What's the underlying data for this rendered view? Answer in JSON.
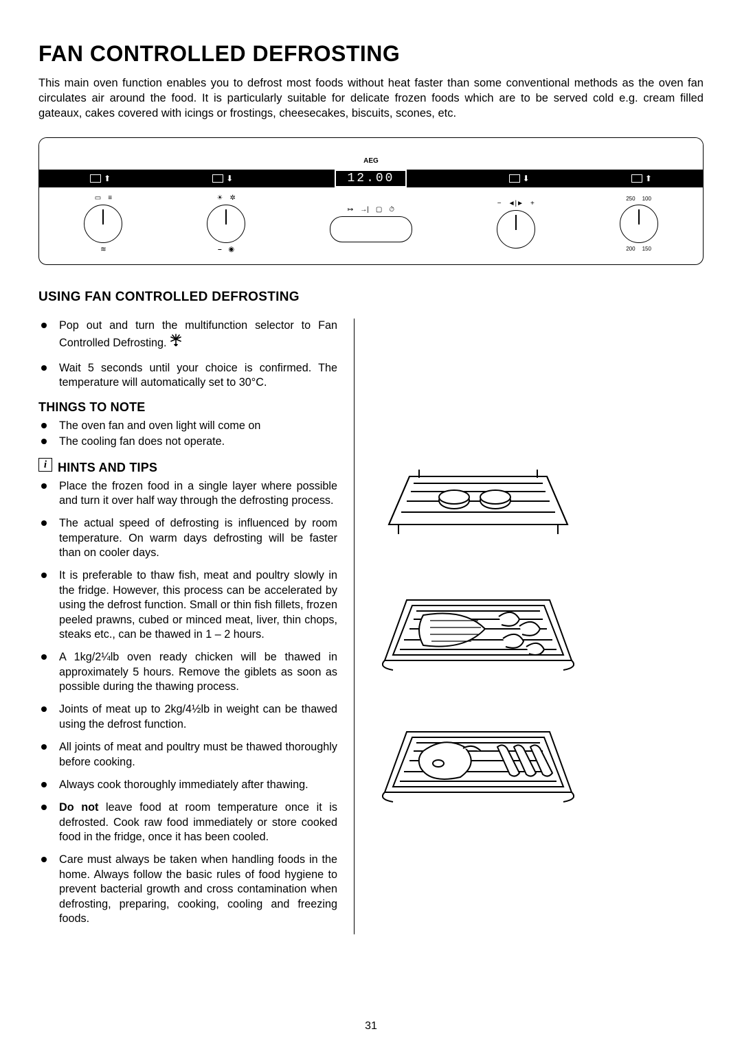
{
  "title": "FAN CONTROLLED DEFROSTING",
  "intro": "This main oven function enables you to defrost most foods without heat faster than some conventional methods as the oven fan circulates air around the food.  It is particularly suitable for delicate frozen foods which are to be served cold e.g. cream filled gateaux, cakes covered with icings or frostings, cheesecakes, biscuits, scones, etc.",
  "panel": {
    "brand": "AEG",
    "clock": "12.00",
    "temp_marks": [
      "250",
      "100",
      "200",
      "150"
    ]
  },
  "sections": {
    "using": {
      "heading": "USING FAN CONTROLLED DEFROSTING",
      "items": [
        "Pop out and turn the multifunction selector to Fan Controlled Defrosting.",
        "Wait 5 seconds until your choice is confirmed. The temperature will automatically set to 30°C."
      ]
    },
    "things": {
      "heading": "THINGS TO NOTE",
      "items": [
        "The oven fan and oven light will come on",
        "The cooling fan does not operate."
      ]
    },
    "hints": {
      "heading": "HINTS AND TIPS",
      "items": [
        "Place the frozen food in a single layer where possible and turn it over half way through the defrosting process.",
        "The actual speed of defrosting is influenced by room temperature.  On warm days defrosting will be faster than on cooler days.",
        "It is preferable to thaw fish, meat and poultry slowly in the fridge.  However, this process can be accelerated by using the defrost function.  Small or thin fish fillets, frozen peeled prawns, cubed or minced meat, liver, thin chops, steaks etc., can be thawed in 1 – 2 hours.",
        "A 1kg/2¼lb oven ready chicken will be thawed in approximately 5 hours. Remove the giblets as soon as possible during the thawing process.",
        "Joints of meat up to 2kg/4½lb in weight can be thawed using the defrost function.",
        "All joints of meat and poultry must be thawed thoroughly before cooking.",
        "Always cook thoroughly immediately after thawing.",
        "{{BOLD:Do not}} leave food at room temperature once it is defrosted.  Cook raw food immediately or store cooked food in the fridge, once it has been cooled.",
        "Care must always be taken when handling foods in the home.  Always follow the basic rules of food hygiene to prevent bacterial growth and cross contamination when defrosting, preparing, cooking, cooling and freezing foods."
      ]
    }
  },
  "page_number": "31",
  "style": {
    "title_fontsize": 32,
    "body_fontsize": 16.2,
    "heading_fontsize": 19,
    "text_color": "#000000",
    "background": "#ffffff"
  }
}
